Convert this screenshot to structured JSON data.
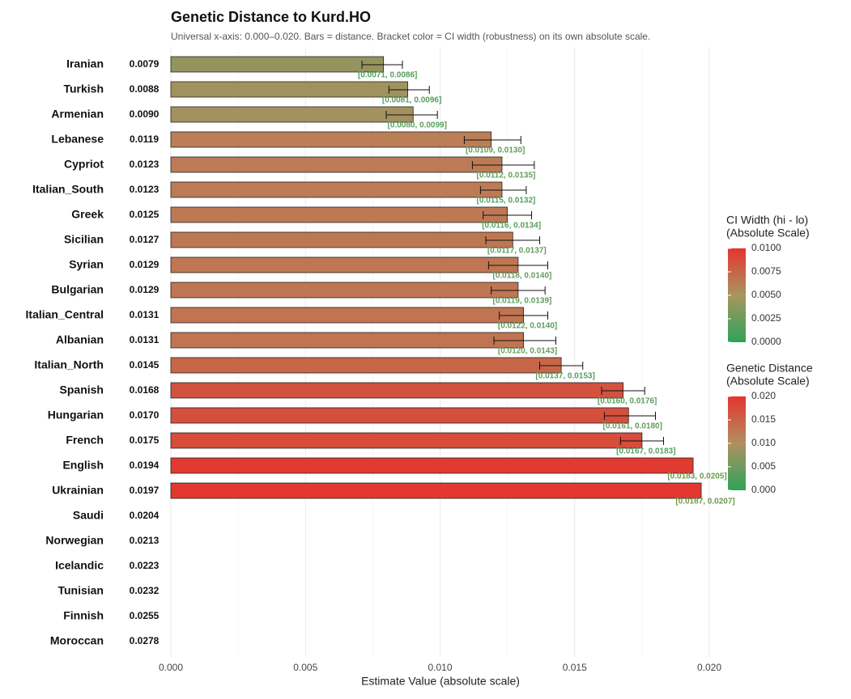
{
  "chart_data": {
    "type": "bar",
    "title": "Genetic Distance to Kurd.HO",
    "subtitle": "Universal x-axis: 0.000–0.020. Bars = distance. Bracket color = CI width (robustness) on its own absolute scale.",
    "x_label": "Estimate Value (absolute scale)",
    "categories": [
      "Iranian",
      "Turkish",
      "Armenian",
      "Lebanese",
      "Cypriot",
      "Italian_South",
      "Greek",
      "Sicilian",
      "Syrian",
      "Bulgarian",
      "Italian_Central",
      "Albanian",
      "Italian_North",
      "Spanish",
      "Hungarian",
      "French",
      "English",
      "Ukrainian",
      "Saudi",
      "Norwegian",
      "Icelandic",
      "Tunisian",
      "Finnish",
      "Moroccan"
    ],
    "values": [
      0.0079,
      0.0088,
      0.009,
      0.0119,
      0.0123,
      0.0123,
      0.0125,
      0.0127,
      0.0129,
      0.0129,
      0.0131,
      0.0131,
      0.0145,
      0.0168,
      0.017,
      0.0175,
      0.0194,
      0.0197,
      0.0204,
      0.0213,
      0.0223,
      0.0232,
      0.0255,
      0.0278
    ],
    "value_labels": [
      "0.0079",
      "0.0088",
      "0.0090",
      "0.0119",
      "0.0123",
      "0.0123",
      "0.0125",
      "0.0127",
      "0.0129",
      "0.0129",
      "0.0131",
      "0.0131",
      "0.0145",
      "0.0168",
      "0.0170",
      "0.0175",
      "0.0194",
      "0.0197",
      "0.0204",
      "0.0213",
      "0.0223",
      "0.0232",
      "0.0255",
      "0.0278"
    ],
    "ci_lower": [
      0.0071,
      0.0081,
      0.008,
      0.0109,
      0.0112,
      0.0115,
      0.0116,
      0.0117,
      0.0118,
      0.0119,
      0.0122,
      0.012,
      0.0137,
      0.016,
      0.0161,
      0.0167,
      null,
      null,
      null,
      null,
      null,
      null,
      null,
      null
    ],
    "ci_upper": [
      0.0086,
      0.0096,
      0.0099,
      0.013,
      0.0135,
      0.0132,
      0.0134,
      0.0137,
      0.014,
      0.0139,
      0.014,
      0.0143,
      0.0153,
      0.0176,
      0.018,
      0.0183,
      null,
      null,
      null,
      null,
      null,
      null,
      null,
      null
    ],
    "ci_labels": [
      "[0.0071, 0.0086]",
      "[0.0081, 0.0096]",
      "[0.0080, 0.0099]",
      "[0.0109, 0.0130]",
      "[0.0112, 0.0135]",
      "[0.0115, 0.0132]",
      "[0.0116, 0.0134]",
      "[0.0117, 0.0137]",
      "[0.0118, 0.0140]",
      "[0.0119, 0.0139]",
      "[0.0122, 0.0140]",
      "[0.0120, 0.0143]",
      "[0.0137, 0.0153]",
      "[0.0160, 0.0176]",
      "[0.0161, 0.0180]",
      "[0.0167, 0.0183]",
      "[0.0183, 0.0205]",
      "[0.0187, 0.0207]",
      null,
      null,
      null,
      null,
      null,
      null
    ],
    "xlim": [
      0,
      0.02
    ],
    "xticks": [
      {
        "value": 0,
        "label": "0.000"
      },
      {
        "value": 0.005,
        "label": "0.005"
      },
      {
        "value": 0.01,
        "label": "0.010"
      },
      {
        "value": 0.015,
        "label": "0.015"
      },
      {
        "value": 0.02,
        "label": "0.020"
      }
    ],
    "grid": true,
    "ci_scale": {
      "title": [
        "CI Width (hi - lo)",
        "(Absolute Scale)"
      ],
      "lim": [
        0,
        0.01
      ],
      "colors": [
        "#2ea35a",
        "#a8955f",
        "#e4352e"
      ],
      "ticks": [
        {
          "value": 0.01,
          "label": "0.0100"
        },
        {
          "value": 0.0075,
          "label": "0.0075"
        },
        {
          "value": 0.005,
          "label": "0.0050"
        },
        {
          "value": 0.0025,
          "label": "0.0025"
        },
        {
          "value": 0,
          "label": "0.0000"
        }
      ]
    },
    "distance_scale": {
      "title": [
        "Genetic Distance",
        "(Absolute Scale)"
      ],
      "lim": [
        0,
        0.02
      ],
      "colors": [
        "#2ea35a",
        "#b09060",
        "#e4352e"
      ],
      "ticks": [
        {
          "value": 0.02,
          "label": "0.020"
        },
        {
          "value": 0.015,
          "label": "0.015"
        },
        {
          "value": 0.01,
          "label": "0.010"
        },
        {
          "value": 0.005,
          "label": "0.005"
        },
        {
          "value": 0,
          "label": "0.000"
        }
      ]
    }
  }
}
